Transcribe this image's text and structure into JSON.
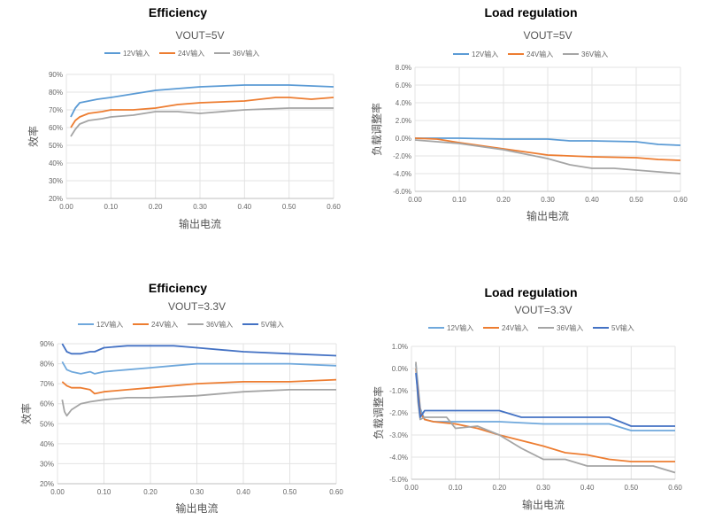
{
  "panels": [
    {
      "heading": "Efficiency",
      "chart_title": "VOUT=5V",
      "chart_data": {
        "type": "line",
        "title": "VOUT=5V",
        "xlabel": "输出电流",
        "ylabel": "效率",
        "xlim": [
          0,
          0.6
        ],
        "ylim": [
          20,
          90
        ],
        "y_unit": "%",
        "x_ticks": [
          "0.00",
          "0.10",
          "0.20",
          "0.30",
          "0.40",
          "0.50",
          "0.60"
        ],
        "y_ticks": [
          "20%",
          "30%",
          "40%",
          "50%",
          "60%",
          "70%",
          "80%",
          "90%"
        ],
        "grid": true,
        "legend": "top",
        "series": [
          {
            "name": "12V输入",
            "color": "#5b9bd5",
            "x": [
              0.01,
              0.02,
              0.03,
              0.05,
              0.07,
              0.1,
              0.15,
              0.2,
              0.3,
              0.4,
              0.5,
              0.6
            ],
            "y": [
              66,
              71,
              74,
              75,
              76,
              77,
              79,
              81,
              83,
              84,
              84,
              83
            ]
          },
          {
            "name": "24V输入",
            "color": "#ed7d31",
            "x": [
              0.01,
              0.02,
              0.03,
              0.05,
              0.08,
              0.1,
              0.15,
              0.2,
              0.25,
              0.3,
              0.4,
              0.47,
              0.5,
              0.55,
              0.6
            ],
            "y": [
              60,
              64,
              66,
              68,
              69,
              70,
              70,
              71,
              73,
              74,
              75,
              77,
              77,
              76,
              77
            ]
          },
          {
            "name": "36V输入",
            "color": "#a5a5a5",
            "x": [
              0.01,
              0.02,
              0.03,
              0.05,
              0.08,
              0.1,
              0.15,
              0.2,
              0.25,
              0.3,
              0.4,
              0.5,
              0.6
            ],
            "y": [
              55,
              59,
              62,
              64,
              65,
              66,
              67,
              69,
              69,
              68,
              70,
              71,
              71
            ]
          }
        ]
      }
    },
    {
      "heading": "Load regulation",
      "chart_title": "VOUT=5V",
      "chart_data": {
        "type": "line",
        "title": "VOUT=5V",
        "xlabel": "输出电流",
        "ylabel": "负载调整率",
        "xlim": [
          0,
          0.6
        ],
        "ylim": [
          -6,
          8
        ],
        "y_unit": "%",
        "x_ticks": [
          "0.00",
          "0.10",
          "0.20",
          "0.30",
          "0.40",
          "0.50",
          "0.60"
        ],
        "y_ticks": [
          "-6.0%",
          "-4.0%",
          "-2.0%",
          "0.0%",
          "2.0%",
          "4.0%",
          "6.0%",
          "8.0%"
        ],
        "grid": true,
        "legend": "top",
        "series": [
          {
            "name": "12V输入",
            "color": "#5b9bd5",
            "x": [
              0,
              0.05,
              0.1,
              0.2,
              0.3,
              0.35,
              0.4,
              0.5,
              0.55,
              0.6
            ],
            "y": [
              0,
              0,
              0,
              -0.1,
              -0.1,
              -0.3,
              -0.3,
              -0.4,
              -0.7,
              -0.8
            ]
          },
          {
            "name": "24V输入",
            "color": "#ed7d31",
            "x": [
              0,
              0.05,
              0.1,
              0.2,
              0.3,
              0.35,
              0.4,
              0.5,
              0.55,
              0.6
            ],
            "y": [
              0,
              -0.1,
              -0.5,
              -1.2,
              -1.9,
              -2.0,
              -2.1,
              -2.2,
              -2.4,
              -2.5
            ]
          },
          {
            "name": "36V输入",
            "color": "#a5a5a5",
            "x": [
              0,
              0.05,
              0.1,
              0.2,
              0.3,
              0.35,
              0.4,
              0.45,
              0.5,
              0.55,
              0.6
            ],
            "y": [
              -0.2,
              -0.4,
              -0.6,
              -1.3,
              -2.3,
              -3.0,
              -3.4,
              -3.4,
              -3.6,
              -3.8,
              -4.0
            ]
          }
        ]
      }
    },
    {
      "heading": "Efficiency",
      "chart_title": "VOUT=3.3V",
      "chart_data": {
        "type": "line",
        "title": "VOUT=3.3V",
        "xlabel": "输出电流",
        "ylabel": "效率",
        "xlim": [
          0,
          0.6
        ],
        "ylim": [
          20,
          90
        ],
        "y_unit": "%",
        "x_ticks": [
          "0.00",
          "0.10",
          "0.20",
          "0.30",
          "0.40",
          "0.50",
          "0.60"
        ],
        "y_ticks": [
          "20%",
          "30%",
          "40%",
          "50%",
          "60%",
          "70%",
          "80%",
          "90%"
        ],
        "grid": true,
        "legend": "top",
        "series": [
          {
            "name": "12V输入",
            "color": "#6fa8dc",
            "x": [
              0.01,
              0.02,
              0.03,
              0.05,
              0.07,
              0.08,
              0.1,
              0.15,
              0.2,
              0.25,
              0.3,
              0.4,
              0.5,
              0.6
            ],
            "y": [
              81,
              77,
              76,
              75,
              76,
              75,
              76,
              77,
              78,
              79,
              80,
              80,
              80,
              79
            ]
          },
          {
            "name": "24V输入",
            "color": "#ed7d31",
            "x": [
              0.01,
              0.02,
              0.03,
              0.05,
              0.07,
              0.08,
              0.1,
              0.15,
              0.2,
              0.3,
              0.4,
              0.5,
              0.6
            ],
            "y": [
              71,
              69,
              68,
              68,
              67,
              65,
              66,
              67,
              68,
              70,
              71,
              71,
              72
            ]
          },
          {
            "name": "36V输入",
            "color": "#a5a5a5",
            "x": [
              0.01,
              0.015,
              0.02,
              0.03,
              0.05,
              0.07,
              0.1,
              0.15,
              0.2,
              0.3,
              0.4,
              0.5,
              0.6
            ],
            "y": [
              62,
              56,
              54,
              57,
              60,
              61,
              62,
              63,
              63,
              64,
              66,
              67,
              67
            ]
          },
          {
            "name": "5V输入",
            "color": "#4472c4",
            "x": [
              0.01,
              0.02,
              0.03,
              0.05,
              0.07,
              0.08,
              0.1,
              0.15,
              0.2,
              0.25,
              0.3,
              0.4,
              0.5,
              0.6
            ],
            "y": [
              90,
              86,
              85,
              85,
              86,
              86,
              88,
              89,
              89,
              89,
              88,
              86,
              85,
              84
            ]
          }
        ]
      }
    },
    {
      "heading": "Load regulation",
      "chart_title": "VOUT=3.3V",
      "chart_data": {
        "type": "line",
        "title": "VOUT=3.3V",
        "xlabel": "输出电流",
        "ylabel": "负载调整率",
        "xlim": [
          0,
          0.6
        ],
        "ylim": [
          -5,
          1
        ],
        "y_unit": "%",
        "x_ticks": [
          "0.00",
          "0.10",
          "0.20",
          "0.30",
          "0.40",
          "0.50",
          "0.60"
        ],
        "y_ticks": [
          "-5.0%",
          "-4.0%",
          "-3.0%",
          "-2.0%",
          "-1.0%",
          "0.0%",
          "1.0%"
        ],
        "grid": true,
        "legend": "top",
        "series": [
          {
            "name": "12V输入",
            "color": "#6fa8dc",
            "x": [
              0.01,
              0.02,
              0.03,
              0.05,
              0.1,
              0.2,
              0.3,
              0.4,
              0.45,
              0.5,
              0.6
            ],
            "y": [
              0.2,
              -1.8,
              -2.3,
              -2.4,
              -2.4,
              -2.4,
              -2.5,
              -2.5,
              -2.5,
              -2.8,
              -2.8
            ]
          },
          {
            "name": "24V输入",
            "color": "#ed7d31",
            "x": [
              0.01,
              0.02,
              0.03,
              0.05,
              0.1,
              0.15,
              0.2,
              0.3,
              0.35,
              0.4,
              0.45,
              0.5,
              0.6
            ],
            "y": [
              0,
              -2.0,
              -2.3,
              -2.4,
              -2.5,
              -2.7,
              -3.0,
              -3.5,
              -3.8,
              -3.9,
              -4.1,
              -4.2,
              -4.2
            ]
          },
          {
            "name": "36V输入",
            "color": "#a5a5a5",
            "x": [
              0.01,
              0.015,
              0.02,
              0.03,
              0.05,
              0.08,
              0.1,
              0.15,
              0.2,
              0.25,
              0.3,
              0.35,
              0.4,
              0.5,
              0.55,
              0.6
            ],
            "y": [
              0.3,
              -1.5,
              -2.3,
              -2.2,
              -2.2,
              -2.2,
              -2.7,
              -2.6,
              -3.0,
              -3.6,
              -4.1,
              -4.1,
              -4.4,
              -4.4,
              -4.4,
              -4.7
            ]
          },
          {
            "name": "5V输入",
            "color": "#4472c4",
            "x": [
              0.01,
              0.02,
              0.03,
              0.05,
              0.1,
              0.15,
              0.2,
              0.25,
              0.3,
              0.4,
              0.45,
              0.5,
              0.6
            ],
            "y": [
              -0.2,
              -2.2,
              -1.9,
              -1.9,
              -1.9,
              -1.9,
              -1.9,
              -2.2,
              -2.2,
              -2.2,
              -2.2,
              -2.6,
              -2.6
            ]
          }
        ]
      }
    }
  ]
}
